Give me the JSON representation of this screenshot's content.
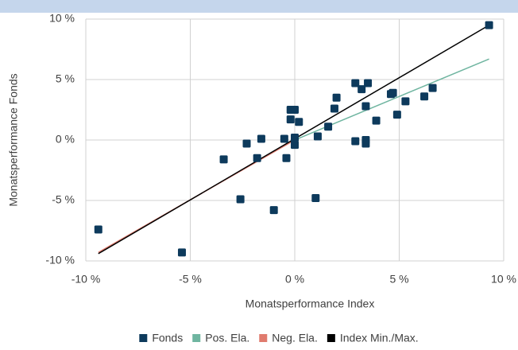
{
  "chart_data": {
    "type": "scatter",
    "xlabel": "Monatsperformance Index",
    "ylabel": "Monatsperformance Fonds",
    "xlim": [
      -10,
      10
    ],
    "ylim": [
      -10,
      10
    ],
    "xticks": [
      {
        "value": -10,
        "label": "-10 %"
      },
      {
        "value": -5,
        "label": "-5 %"
      },
      {
        "value": 0,
        "label": "0 %"
      },
      {
        "value": 5,
        "label": "5 %"
      },
      {
        "value": 10,
        "label": "10 %"
      }
    ],
    "yticks": [
      {
        "value": -10,
        "label": "-10 %"
      },
      {
        "value": -5,
        "label": "-5 %"
      },
      {
        "value": 0,
        "label": "0 %"
      },
      {
        "value": 5,
        "label": "5 %"
      },
      {
        "value": 10,
        "label": "10 %"
      }
    ],
    "grid": true,
    "legend": "bottom",
    "series": [
      {
        "name": "Fonds",
        "color": "#0d3a5c",
        "mode": "markers",
        "x": [
          9.3,
          -9.4,
          -5.4,
          -3.4,
          -2.3,
          -1.6,
          -1.8,
          -2.6,
          -1.0,
          -0.5,
          -0.4,
          -0.2,
          -0.2,
          0.0,
          0.0,
          0.0,
          0.2,
          1.0,
          1.1,
          1.6,
          1.9,
          2.0,
          2.9,
          2.9,
          3.2,
          3.4,
          3.4,
          3.4,
          3.5,
          3.9,
          4.6,
          4.7,
          4.9,
          5.3,
          6.2,
          6.6
        ],
        "values": [
          9.5,
          -7.4,
          -9.3,
          -1.6,
          -0.3,
          0.1,
          -1.5,
          -4.9,
          -5.8,
          0.1,
          -1.5,
          1.7,
          2.5,
          2.5,
          -0.4,
          0.2,
          1.5,
          -4.8,
          0.3,
          1.1,
          2.6,
          3.5,
          -0.1,
          4.7,
          4.2,
          -0.3,
          0.0,
          2.8,
          4.7,
          1.6,
          3.8,
          3.9,
          2.1,
          3.2,
          3.6,
          4.3
        ]
      },
      {
        "name": "Pos. Ela.",
        "color": "#6fb5a0",
        "mode": "lines",
        "x": [
          0,
          9.3
        ],
        "values": [
          0,
          6.7
        ]
      },
      {
        "name": "Neg. Ela.",
        "color": "#e07b6e",
        "mode": "lines",
        "x": [
          -9.4,
          0
        ],
        "values": [
          -9.3,
          0
        ]
      },
      {
        "name": "Index Min./Max.",
        "color": "#000000",
        "mode": "lines",
        "x": [
          -9.4,
          9.3
        ],
        "values": [
          -9.4,
          9.5
        ]
      }
    ]
  }
}
